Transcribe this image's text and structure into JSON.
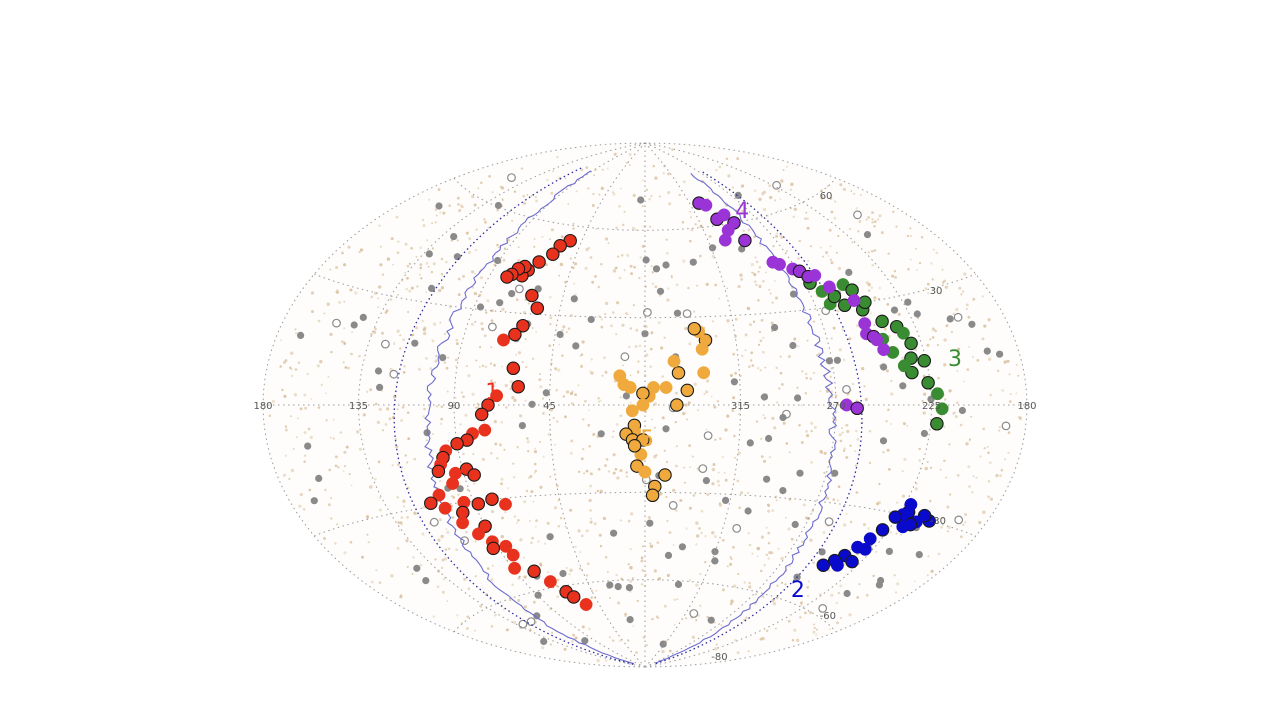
{
  "chart_data": {
    "type": "scatter",
    "projection": "aitoff",
    "grid": true,
    "colors": {
      "grid": "#9a9a9a",
      "background_stars": "#d2b48c",
      "gray_points": "#8a8a8a",
      "contour": "#6c6cd0",
      "ecliptic": "#2a2aa0"
    },
    "longitude_ticks": [
      {
        "value": 180,
        "label": "180"
      },
      {
        "value": 135,
        "label": "135"
      },
      {
        "value": 90,
        "label": "90"
      },
      {
        "value": 45,
        "label": "45"
      },
      {
        "value": 315,
        "label": "315"
      },
      {
        "value": 270,
        "label": "270"
      },
      {
        "value": 225,
        "label": "225"
      },
      {
        "value": -180,
        "label": "180"
      }
    ],
    "latitude_ticks": [
      {
        "value": 60,
        "label": "60"
      },
      {
        "value": 30,
        "label": "30"
      },
      {
        "value": -30,
        "label": "-30"
      },
      {
        "value": -60,
        "label": "-60"
      },
      {
        "value": -80,
        "label": "-80"
      }
    ],
    "series": [
      {
        "name": "1",
        "color": "#e8321e",
        "label_pos": [
          72,
          2
        ],
        "points": [
          [
            53,
            55
          ],
          [
            58,
            53
          ],
          [
            60,
            50
          ],
          [
            66,
            47
          ],
          [
            70,
            44
          ],
          [
            72,
            42
          ],
          [
            73,
            45
          ],
          [
            76,
            44
          ],
          [
            78,
            42
          ],
          [
            80,
            41
          ],
          [
            62,
            36
          ],
          [
            57,
            32
          ],
          [
            62,
            26
          ],
          [
            65,
            23
          ],
          [
            70,
            21
          ],
          [
            63,
            12
          ],
          [
            60,
            6
          ],
          [
            70,
            3
          ],
          [
            74,
            0
          ],
          [
            77,
            -3
          ],
          [
            76,
            -8
          ],
          [
            82,
            -9
          ],
          [
            85,
            -11
          ],
          [
            90,
            -12
          ],
          [
            96,
            -14
          ],
          [
            98,
            -16
          ],
          [
            100,
            -18
          ],
          [
            88,
            -20
          ],
          [
            102,
            -20
          ],
          [
            94,
            -21
          ],
          [
            85,
            -22
          ],
          [
            97,
            -24
          ],
          [
            106,
            -27
          ],
          [
            112,
            -29
          ],
          [
            106,
            -31
          ],
          [
            95,
            -30
          ],
          [
            88,
            -31
          ],
          [
            80,
            -30
          ],
          [
            74,
            -32
          ],
          [
            98,
            -33
          ],
          [
            101,
            -36
          ],
          [
            90,
            -38
          ],
          [
            96,
            -40
          ],
          [
            91,
            -43
          ],
          [
            85,
            -45
          ],
          [
            93,
            -45
          ],
          [
            84,
            -48
          ],
          [
            89,
            -52
          ],
          [
            78,
            -54
          ],
          [
            72,
            -58
          ],
          [
            66,
            -62
          ],
          [
            63,
            -64
          ],
          [
            57,
            -67
          ]
        ]
      },
      {
        "name": "2",
        "color": "#0a0acc",
        "label_pos": [
          238,
          -58
        ],
        "points": [
          [
            208,
            -30
          ],
          [
            212,
            -29
          ],
          [
            214,
            -31
          ],
          [
            216,
            -32
          ],
          [
            219,
            -33
          ],
          [
            221,
            -29
          ],
          [
            223,
            -30
          ],
          [
            226,
            -31
          ],
          [
            222,
            -27
          ],
          [
            228,
            -35
          ],
          [
            231,
            -38
          ],
          [
            234,
            -41
          ],
          [
            237,
            -44
          ],
          [
            240,
            -46
          ],
          [
            244,
            -48
          ],
          [
            236,
            -47
          ],
          [
            230,
            -45
          ],
          [
            229,
            -41
          ]
        ]
      },
      {
        "name": "3",
        "color": "#3a8c32",
        "label_pos": [
          212,
          10
        ],
        "points": [
          [
            267,
            38
          ],
          [
            263,
            35
          ],
          [
            262,
            31
          ],
          [
            258,
            33
          ],
          [
            255,
            30
          ],
          [
            250,
            36
          ],
          [
            247,
            34
          ],
          [
            247,
            28
          ],
          [
            244,
            30
          ],
          [
            240,
            24
          ],
          [
            234,
            22
          ],
          [
            232,
            20
          ],
          [
            230,
            17
          ],
          [
            240,
            15
          ],
          [
            232,
            13
          ],
          [
            226,
            12
          ],
          [
            226,
            6
          ],
          [
            222,
            3
          ],
          [
            220,
            -1
          ],
          [
            222,
            -5
          ],
          [
            233,
            9
          ],
          [
            236,
            11
          ],
          [
            243,
            19
          ]
        ]
      },
      {
        "name": "4",
        "color": "#9a34d6",
        "label_pos": [
          280,
          61
        ],
        "points": [
          [
            306,
            68
          ],
          [
            301,
            67
          ],
          [
            300,
            62
          ],
          [
            292,
            63
          ],
          [
            289,
            60
          ],
          [
            297,
            58
          ],
          [
            303,
            55
          ],
          [
            290,
            54
          ],
          [
            281,
            46
          ],
          [
            278,
            45
          ],
          [
            272,
            43
          ],
          [
            269,
            42
          ],
          [
            266,
            40
          ],
          [
            262,
            40
          ],
          [
            258,
            36
          ],
          [
            249,
            31
          ],
          [
            249,
            24
          ],
          [
            250,
            21
          ],
          [
            247,
            20
          ],
          [
            246,
            19
          ],
          [
            244,
            16
          ],
          [
            265,
            0
          ],
          [
            260,
            -1
          ]
        ]
      },
      {
        "name": "5",
        "color": "#f0a93c",
        "label_pos": [
          359,
          -14
        ],
        "points": [
          [
            330,
            22
          ],
          [
            333,
            25
          ],
          [
            335,
            26
          ],
          [
            332,
            19
          ],
          [
            332,
            11
          ],
          [
            340,
            5
          ],
          [
            344,
            11
          ],
          [
            346,
            15
          ],
          [
            345,
            0
          ],
          [
            350,
            6
          ],
          [
            356,
            6
          ],
          [
            358,
            3
          ],
          [
            361,
            4
          ],
          [
            361,
            0
          ],
          [
            367,
            6
          ],
          [
            370,
            7
          ],
          [
            372,
            10
          ],
          [
            6,
            -2
          ],
          [
            5,
            -7
          ],
          [
            5,
            -9
          ],
          [
            9,
            -10
          ],
          [
            6,
            -12
          ],
          [
            1,
            -12
          ],
          [
            2,
            -17
          ],
          [
            4,
            -21
          ],
          [
            350,
            -24
          ],
          [
            355,
            -28
          ],
          [
            356,
            -31
          ],
          [
            360,
            -23
          ],
          [
            365,
            -14
          ]
        ]
      }
    ]
  }
}
